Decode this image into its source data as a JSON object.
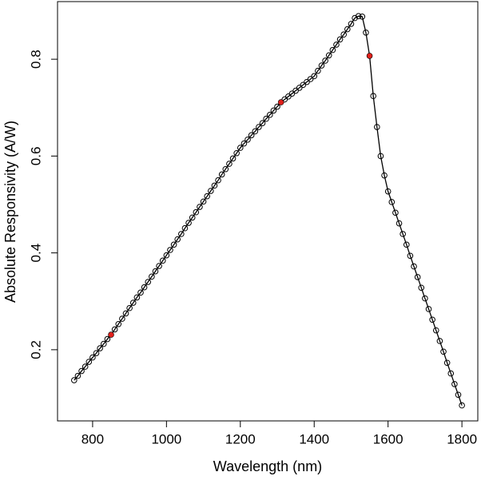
{
  "chart_data": {
    "type": "line",
    "x_label": "Wavelength (nm)",
    "y_label": "Absolute Responsivity (A/W)",
    "xlim": [
      705,
      1843
    ],
    "ylim": [
      0.053,
      0.919
    ],
    "xticks": [
      800,
      1000,
      1200,
      1400,
      1600,
      1800
    ],
    "yticks": [
      0.2,
      0.4,
      0.6,
      0.8
    ],
    "series": [
      {
        "color": "#000000",
        "marker": "circle",
        "line": true,
        "x": [
          750,
          760,
          770,
          780,
          790,
          800,
          810,
          820,
          830,
          840,
          850,
          860,
          870,
          880,
          890,
          900,
          910,
          920,
          930,
          940,
          950,
          960,
          970,
          980,
          990,
          1000,
          1010,
          1020,
          1030,
          1040,
          1050,
          1060,
          1070,
          1080,
          1090,
          1100,
          1110,
          1120,
          1130,
          1140,
          1150,
          1160,
          1170,
          1180,
          1190,
          1200,
          1210,
          1220,
          1230,
          1240,
          1250,
          1260,
          1270,
          1280,
          1290,
          1300,
          1310,
          1320,
          1330,
          1340,
          1350,
          1360,
          1370,
          1380,
          1390,
          1400,
          1410,
          1420,
          1430,
          1440,
          1450,
          1460,
          1470,
          1480,
          1490,
          1500,
          1510,
          1520,
          1530,
          1540,
          1550,
          1560,
          1570,
          1580,
          1590,
          1600,
          1610,
          1620,
          1630,
          1640,
          1650,
          1660,
          1670,
          1680,
          1690,
          1700,
          1710,
          1720,
          1730,
          1740,
          1750,
          1760,
          1770,
          1780,
          1790,
          1800
        ],
        "values": [
          0.137,
          0.146,
          0.156,
          0.165,
          0.175,
          0.184,
          0.193,
          0.203,
          0.212,
          0.222,
          0.231,
          0.242,
          0.253,
          0.264,
          0.275,
          0.286,
          0.297,
          0.308,
          0.318,
          0.329,
          0.34,
          0.351,
          0.362,
          0.373,
          0.384,
          0.395,
          0.406,
          0.417,
          0.428,
          0.439,
          0.451,
          0.462,
          0.473,
          0.484,
          0.495,
          0.506,
          0.517,
          0.528,
          0.539,
          0.55,
          0.562,
          0.573,
          0.584,
          0.595,
          0.606,
          0.617,
          0.626,
          0.634,
          0.643,
          0.651,
          0.66,
          0.668,
          0.677,
          0.685,
          0.694,
          0.702,
          0.711,
          0.717,
          0.723,
          0.729,
          0.735,
          0.741,
          0.747,
          0.753,
          0.759,
          0.765,
          0.776,
          0.787,
          0.797,
          0.808,
          0.819,
          0.83,
          0.841,
          0.851,
          0.862,
          0.873,
          0.885,
          0.889,
          0.888,
          0.855,
          0.807,
          0.724,
          0.66,
          0.6,
          0.56,
          0.527,
          0.505,
          0.483,
          0.461,
          0.439,
          0.417,
          0.394,
          0.372,
          0.35,
          0.328,
          0.306,
          0.284,
          0.262,
          0.24,
          0.218,
          0.196,
          0.173,
          0.151,
          0.129,
          0.107,
          0.085
        ]
      },
      {
        "color": "#e0201b",
        "marker": "dot",
        "line": false,
        "x": [
          850,
          1310,
          1550
        ],
        "values": [
          0.231,
          0.711,
          0.807
        ]
      }
    ]
  }
}
